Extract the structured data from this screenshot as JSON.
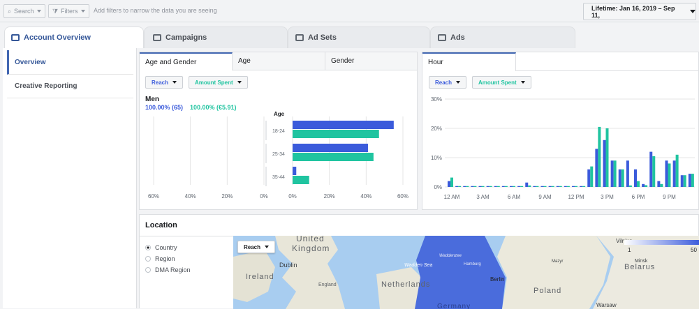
{
  "topbar": {
    "search": "Search",
    "filters": "Filters",
    "hint": "Add filters to narrow the data you are seeing",
    "date": "Lifetime: Jan 16, 2019 – Sep 11,"
  },
  "tabs": [
    {
      "label": "Account Overview"
    },
    {
      "label": "Campaigns"
    },
    {
      "label": "Ad Sets"
    },
    {
      "label": "Ads"
    }
  ],
  "sidebar": {
    "items": [
      {
        "label": "Overview"
      },
      {
        "label": "Creative Reporting"
      }
    ]
  },
  "demo": {
    "tabs": [
      "Age and Gender",
      "Age",
      "Gender"
    ],
    "reach": "Reach",
    "spent": "Amount Spent",
    "men": "Men",
    "men_reach": "100.00% (65)",
    "men_spent": "100.00% (€5.91)",
    "age_title": "Age"
  },
  "hour": {
    "tab": "Hour",
    "reach": "Reach",
    "spent": "Amount Spent"
  },
  "location": {
    "title": "Location",
    "options": [
      "Country",
      "Region",
      "DMA Region"
    ],
    "reach": "Reach"
  },
  "map": {
    "labels": [
      "United",
      "Kingdom",
      "Dublin",
      "Ireland",
      "England",
      "Netherlands",
      "Wadden Sea",
      "Berlin",
      "Poland",
      "Belarus",
      "Vilnius",
      "Warsaw",
      "Minsk",
      "Germany",
      "Waddenzee",
      "Hamburg",
      "Mazyr"
    ],
    "scale": [
      "1",
      "50"
    ]
  },
  "colors": {
    "reach": "#3b5bdb",
    "spent": "#20c4a0"
  },
  "chart_data": [
    {
      "type": "bar",
      "orientation": "horizontal",
      "title": "Age",
      "categories": [
        "18-24",
        "25-34",
        "35-44"
      ],
      "series": [
        {
          "values": [
            55,
            41,
            2
          ]
        },
        {
          "values": [
            47,
            44,
            9
          ]
        }
      ],
      "xlim_right": [
        0,
        60
      ],
      "ticks_right": [
        "0%",
        "20%",
        "40%",
        "60%"
      ],
      "ticks_left": [
        "60%",
        "40%",
        "20%",
        "0%"
      ]
    },
    {
      "type": "bar",
      "xlabels": [
        "12 AM",
        "3 AM",
        "6 AM",
        "9 AM",
        "12 PM",
        "3 PM",
        "6 PM",
        "9 PM"
      ],
      "yticks": [
        "0%",
        "10%",
        "20%",
        "30%"
      ],
      "ylim": [
        0,
        30
      ],
      "series": [
        {
          "values": [
            2,
            0.3,
            0.3,
            0.3,
            0.3,
            0.3,
            0.3,
            0.3,
            0.3,
            0.3,
            1.5,
            0.3,
            0.3,
            0.3,
            0.3,
            0.3,
            0.3,
            0.3,
            6,
            13,
            16,
            9,
            6,
            9,
            6,
            1,
            12,
            2,
            9,
            9,
            4,
            4.5
          ]
        },
        {
          "values": [
            3.2,
            0.3,
            0.3,
            0.3,
            0.3,
            0.3,
            0.3,
            0.3,
            0.3,
            0.3,
            0.5,
            0.3,
            0.3,
            0.3,
            0.3,
            0.3,
            0.3,
            0.3,
            7,
            20.5,
            20,
            9,
            6,
            0.5,
            2,
            0.6,
            10.5,
            1,
            8,
            11,
            4,
            4.5
          ]
        }
      ]
    }
  ]
}
